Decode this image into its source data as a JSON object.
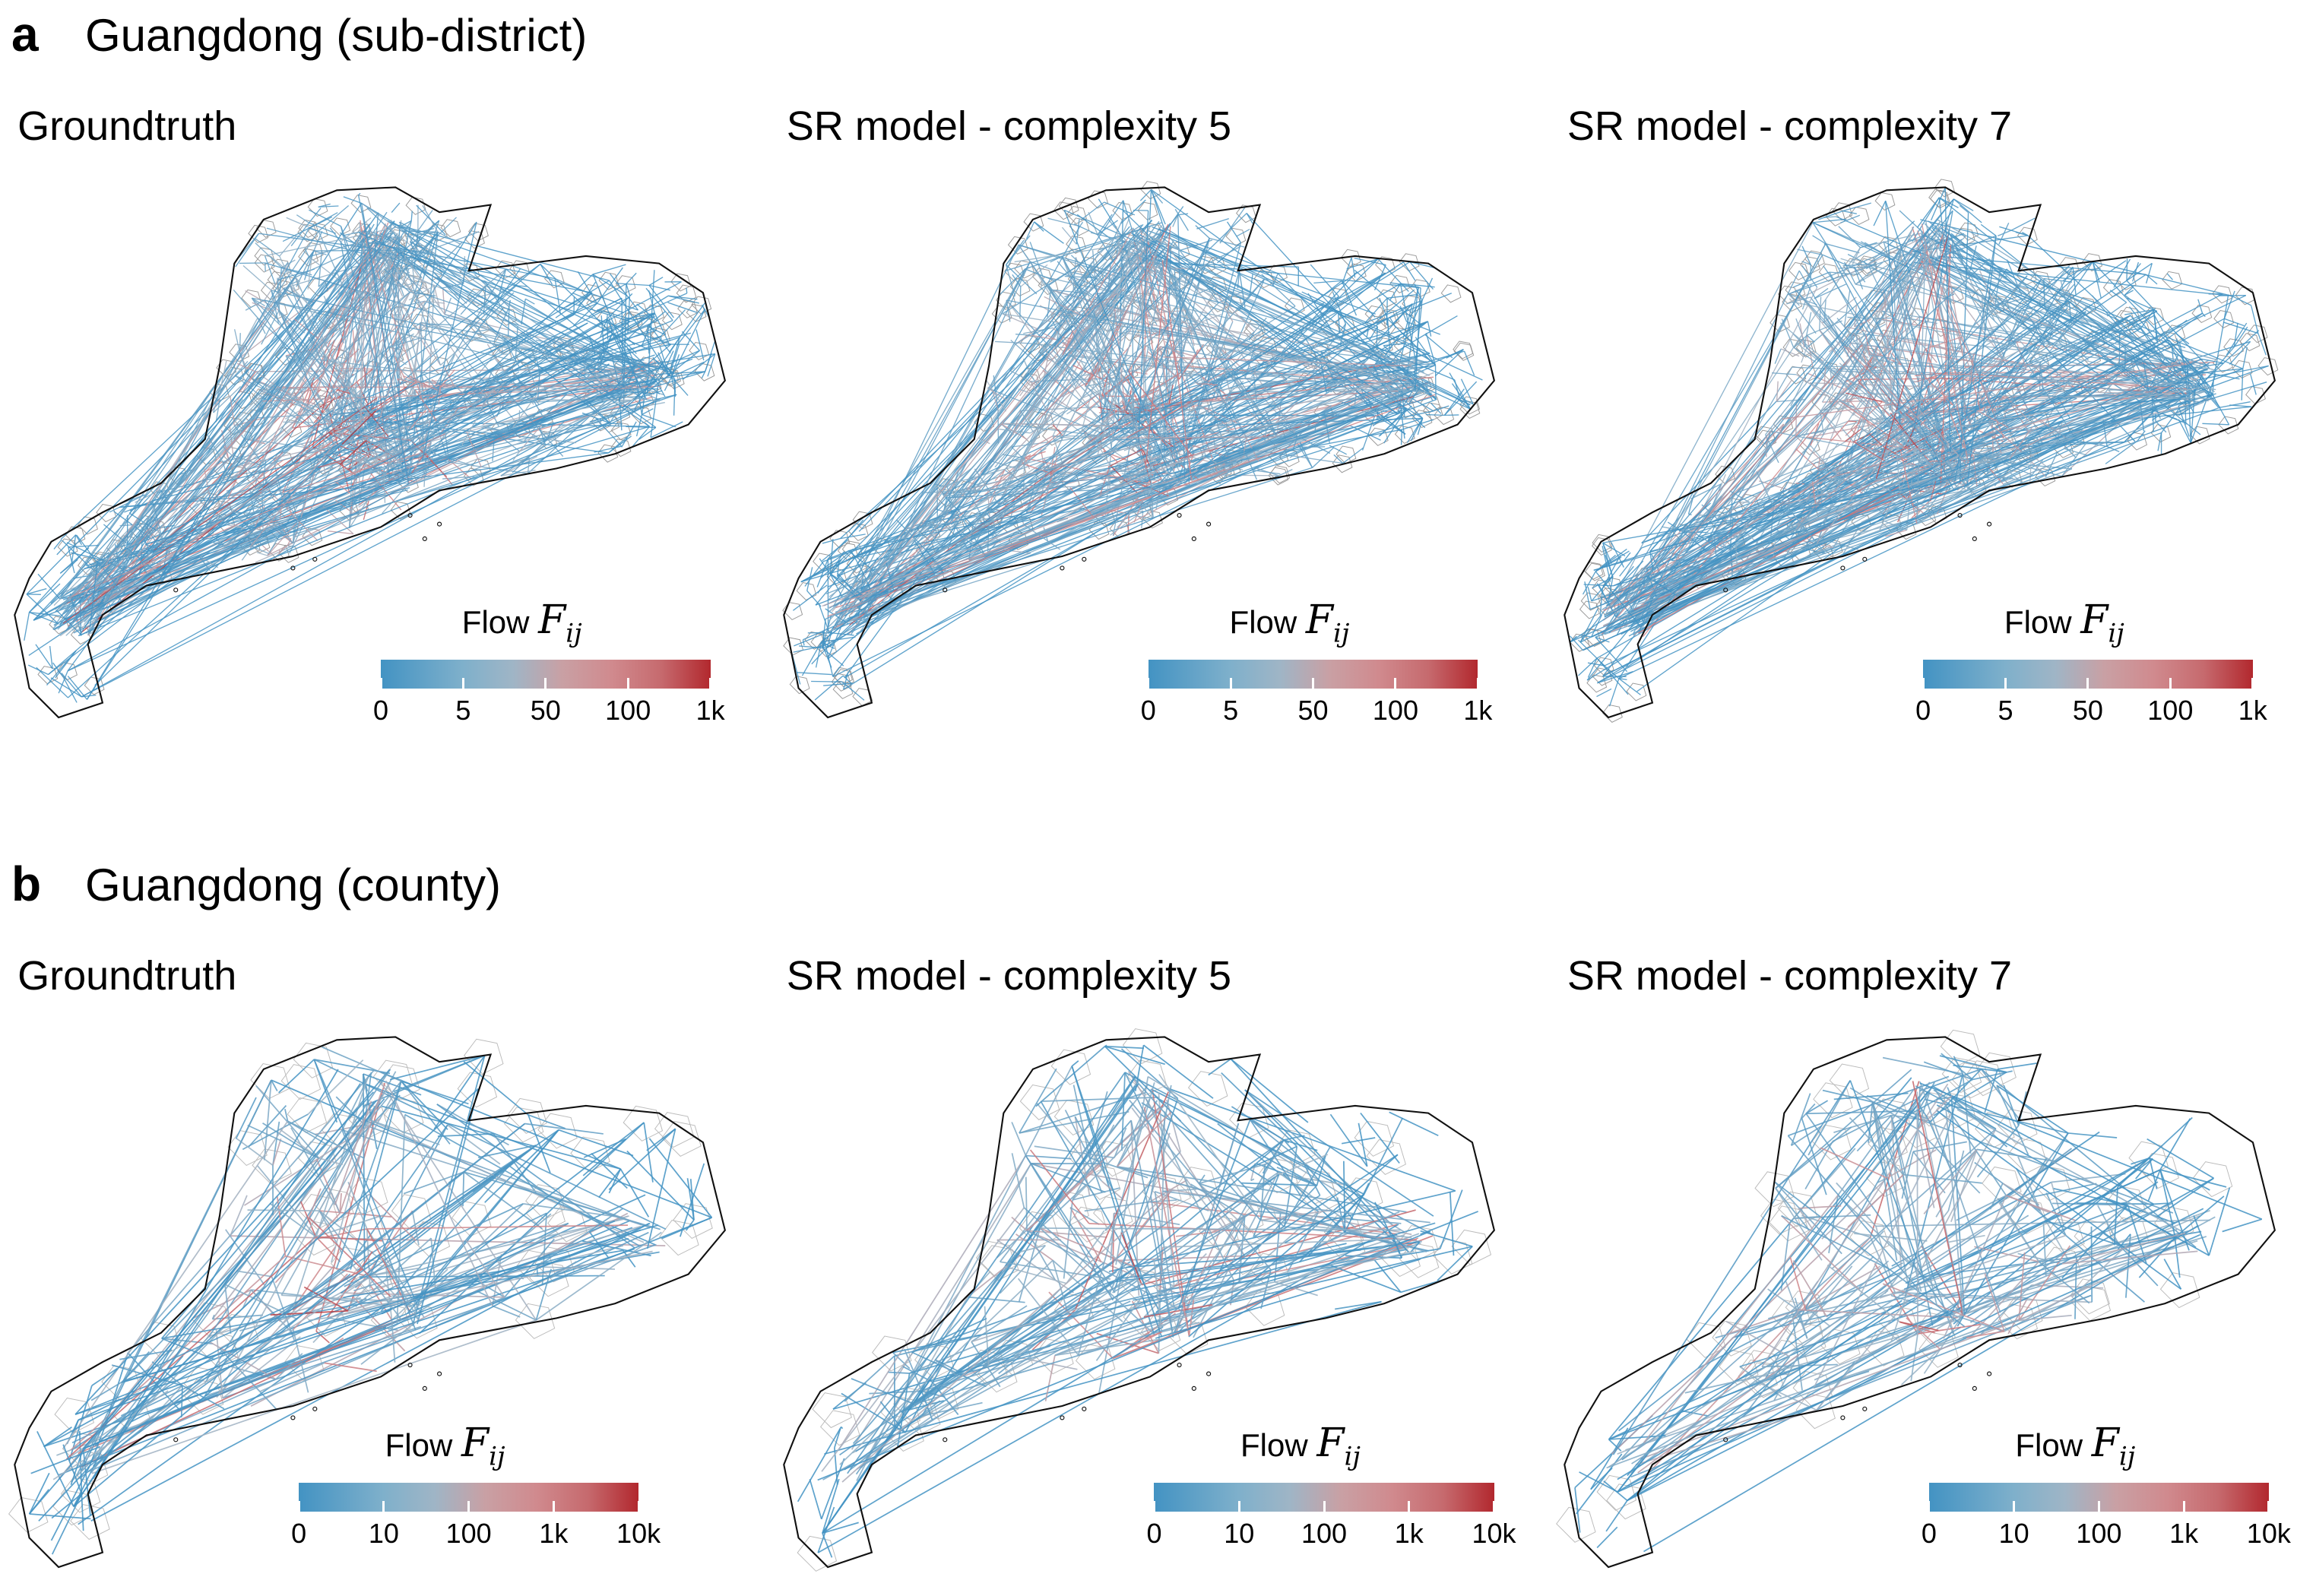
{
  "panels": [
    {
      "letter": "a",
      "title": "Guangdong (sub-district)",
      "level": "sub-district",
      "maps": [
        {
          "subtitle": "Groundtruth"
        },
        {
          "subtitle": "SR model - complexity 5"
        },
        {
          "subtitle": "SR model - complexity 7"
        }
      ],
      "colorbar": {
        "label": "Flow",
        "symbol": "F",
        "subscript": "ij",
        "ticks": [
          "0",
          "5",
          "50",
          "100",
          "1k"
        ]
      }
    },
    {
      "letter": "b",
      "title": "Guangdong (county)",
      "level": "county",
      "maps": [
        {
          "subtitle": "Groundtruth"
        },
        {
          "subtitle": "SR model - complexity 5"
        },
        {
          "subtitle": "SR model - complexity 7"
        }
      ],
      "colorbar": {
        "label": "Flow",
        "symbol": "F",
        "subscript": "ij",
        "ticks": [
          "0",
          "10",
          "100",
          "1k",
          "10k"
        ]
      }
    }
  ],
  "colors": {
    "low": "#4393c3",
    "mid": "#a8b4c4",
    "high": "#b2282e",
    "boundary": "#000000"
  }
}
